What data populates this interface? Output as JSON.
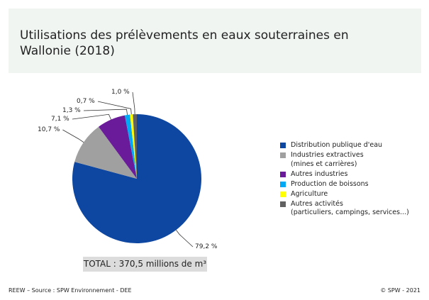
{
  "title": "Utilisations des prélèvements en eaux souterraines en Wallonie (2018)",
  "chart_data": {
    "type": "pie",
    "title": "Utilisations des prélèvements en eaux souterraines en Wallonie (2018)",
    "start": "top",
    "direction": "clockwise",
    "slices": [
      {
        "name": "Distribution publique d'eau",
        "value": 79.2,
        "label": "79,2 %",
        "color": "#0d47a1"
      },
      {
        "name": "Industries extractives (mines et carrières)",
        "value": 10.7,
        "label": "10,7 %",
        "color": "#a0a0a0"
      },
      {
        "name": "Autres industries",
        "value": 7.1,
        "label": "7,1 %",
        "color": "#6a1b9a"
      },
      {
        "name": "Production de boissons",
        "value": 1.3,
        "label": "1,3 %",
        "color": "#03a9f4"
      },
      {
        "name": "Agriculture",
        "value": 0.7,
        "label": "0,7 %",
        "color": "#ffff00"
      },
      {
        "name": "Autres activités (particuliers, campings, services...)",
        "value": 1.0,
        "label": "1,0 %",
        "color": "#616161"
      }
    ],
    "legend": [
      {
        "line1": "Distribution publique d'eau",
        "line2": ""
      },
      {
        "line1": "Industries extractives",
        "line2": "(mines et carrières)"
      },
      {
        "line1": "Autres industries",
        "line2": ""
      },
      {
        "line1": "Production de boissons",
        "line2": ""
      },
      {
        "line1": "Agriculture",
        "line2": ""
      },
      {
        "line1": "Autres activités",
        "line2": "(particuliers, campings, services...)"
      }
    ],
    "legend_position": "right"
  },
  "total": "TOTAL : 370,5 millions de m³",
  "footer": {
    "source": "REEW – Source : SPW Environnement - DEE",
    "copyright": "© SPW - 2021"
  }
}
